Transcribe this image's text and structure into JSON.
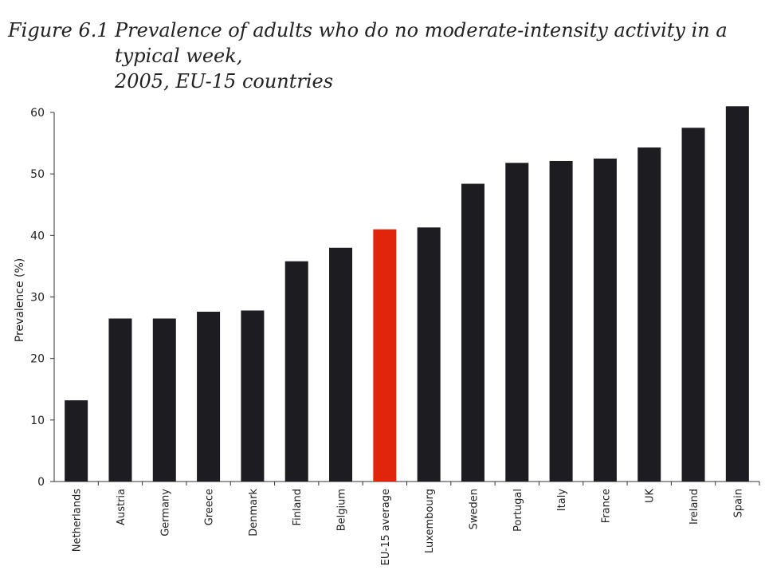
{
  "figure": {
    "number": "Figure 6.1",
    "title_line1": "Prevalence of adults who do no moderate-intensity activity in a typical week,",
    "title_line2": "2005, EU-15 countries"
  },
  "colors": {
    "bar": "#1d1c21",
    "highlight": "#e0250c",
    "axis": "#333333"
  },
  "chart_data": {
    "type": "bar",
    "title": "Prevalence of adults who do no moderate-intensity activity in a typical week, 2005, EU-15 countries",
    "xlabel": "",
    "ylabel": "Prevalence (%)",
    "ylim": [
      0,
      60
    ],
    "yticks": [
      0,
      10,
      20,
      30,
      40,
      50,
      60
    ],
    "grid": false,
    "categories": [
      "Netherlands",
      "Austria",
      "Germany",
      "Greece",
      "Denmark",
      "Finland",
      "Belgium",
      "EU-15 average",
      "Luxembourg",
      "Sweden",
      "Portugal",
      "Italy",
      "France",
      "UK",
      "Ireland",
      "Spain"
    ],
    "values": [
      13.2,
      26.5,
      26.5,
      27.6,
      27.8,
      35.8,
      38.0,
      41.0,
      41.3,
      48.4,
      51.8,
      52.1,
      52.5,
      54.3,
      57.5,
      61.0
    ],
    "highlight": "EU-15 average"
  }
}
